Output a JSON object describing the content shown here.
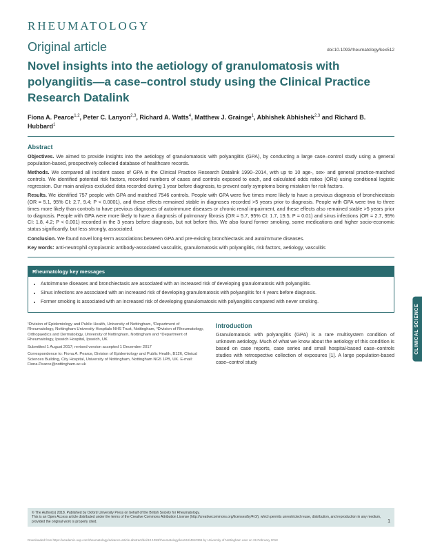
{
  "journal": "RHEUMATOLOGY",
  "article_type": "Original article",
  "doi": "doi:10.1093/rheumatology/kex512",
  "title": "Novel insights into the aetiology of granulomatosis with polyangiitis—a case–control study using the Clinical Practice Research Datalink",
  "authors_html": "Fiona A. Pearce<sup>1,2</sup>, Peter C. Lanyon<sup>2,3</sup>, Richard A. Watts<sup>4</sup>, Matthew J. Grainge<sup>1</sup>, Abhishek Abhishek<sup>2,3</sup> and Richard B. Hubbard<sup>1</sup>",
  "abstract": {
    "heading": "Abstract",
    "objectives_label": "Objectives.",
    "objectives": "We aimed to provide insights into the aetiology of granulomatosis with polyangiitis (GPA), by conducting a large case–control study using a general population-based, prospectively collected database of healthcare records.",
    "methods_label": "Methods.",
    "methods": "We compared all incident cases of GPA in the Clinical Practice Research Datalink 1990–2014, with up to 10 age-, sex- and general practice-matched controls. We identified potential risk factors, recorded numbers of cases and controls exposed to each, and calculated odds ratios (ORs) using conditional logistic regression. Our main analysis excluded data recorded during 1 year before diagnosis, to prevent early symptoms being mistaken for risk factors.",
    "results_label": "Results.",
    "results": "We identified 757 people with GPA and matched 7546 controls. People with GPA were five times more likely to have a previous diagnosis of bronchiectasis (OR = 5.1, 95% CI: 2.7, 9.4; P < 0.0001), and these effects remained stable in diagnoses recorded >5 years prior to diagnosis. People with GPA were two to three times more likely than controls to have previous diagnoses of autoimmune diseases or chronic renal impairment, and these effects also remained stable >5 years prior to diagnosis. People with GPA were more likely to have a diagnosis of pulmonary fibrosis (OR = 5.7, 95% CI: 1.7, 19.5; P = 0.01) and sinus infections (OR = 2.7, 95% CI: 1.8, 4.2; P < 0.001) recorded in the 3 years before diagnosis, but not before this. We also found former smoking, some medications and higher socio-economic status significantly, but less strongly, associated.",
    "conclusion_label": "Conclusion.",
    "conclusion": "We found novel long-term associations between GPA and pre-existing bronchiectasis and autoimmune diseases.",
    "keywords_label": "Key words:",
    "keywords": "anti-neutrophil cytoplasmic antibody-associated vasculitis, granulomatosis with polyangiitis, risk factors, aetiology, vasculitis"
  },
  "key_messages": {
    "heading": "Rheumatology key messages",
    "items": [
      "Autoimmune diseases and bronchiectasis are associated with an increased risk of developing granulomatosis with polyangiitis.",
      "Sinus infections are associated with an increased risk of developing granulomatosis with polyangiitis for 4 years before diagnosis.",
      "Former smoking is associated with an increased risk of developing granulomatosis with polyangiitis compared with never smoking."
    ]
  },
  "affiliations": {
    "line1": "¹Division of Epidemiology and Public Health, University of Nottingham, ²Department of Rheumatology, Nottingham University Hospitals NHS Trust, Nottingham, ³Division of Rheumatology, Orthopaedics and Dermatology, University of Nottingham, Nottingham and ⁴Department of Rheumatology, Ipswich Hospital, Ipswich, UK",
    "submitted": "Submitted 1 August 2017; revised version accepted 1 December 2017",
    "correspondence": "Correspondence to: Fiona A. Pearce, Division of Epidemiology and Public Health, B126, Clinical Sciences Building, City Hospital, University of Nottingham, Nottingham NG5 1PB, UK. E-mail: Fiona.Pearce@nottingham.ac.uk"
  },
  "introduction": {
    "heading": "Introduction",
    "body": "Granulomatosis with polyangiitis (GPA) is a rare multisystem condition of unknown aetiology. Much of what we know about the aetiology of this condition is based on case reports, case series and small hospital-based case–controls studies with retrospective collection of exposures [1]. A large population-based case–control study"
  },
  "side_tab": "CLINICAL SCIENCE",
  "footer": {
    "line1": "© The Author(s) 2018. Published by Oxford University Press on behalf of the British Society for Rheumatology.",
    "line2": "This is an Open Access article distributed under the terms of the Creative Commons Attribution License (http://creativecommons.org/licenses/by/4.0/), which permits unrestricted reuse, distribution, and reproduction in any medium, provided the original work is properly cited.",
    "page": "1"
  },
  "download": "Downloaded from https://academic.oup.com/rheumatology/advance-article-abstract/doi/10.1093/rheumatology/kex512/4910365\nby University of Nottingham user\non 26 February 2018",
  "colors": {
    "accent": "#2a6b6f",
    "footer_bg": "#d9e6e6"
  }
}
